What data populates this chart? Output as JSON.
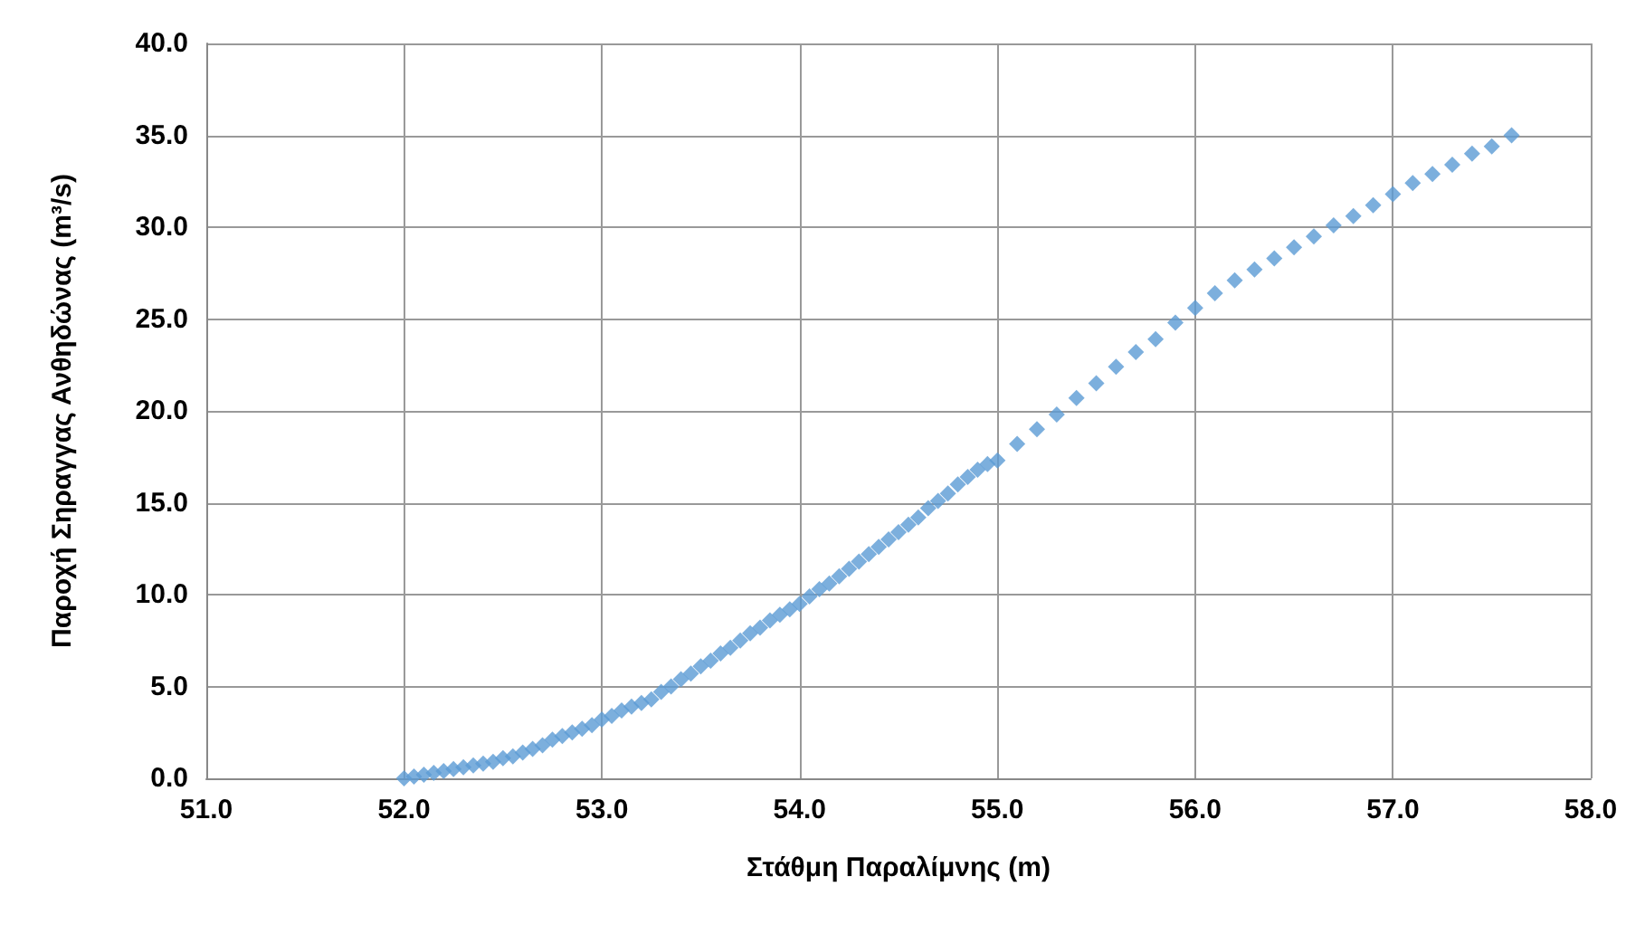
{
  "chart_data": {
    "type": "scatter",
    "xlabel": "Στάθμη Παραλίμνης (m)",
    "ylabel": "Παροχή Σηραγγας Ανθηδώνας (m³/s)",
    "x": [
      52.0,
      52.05,
      52.1,
      52.15,
      52.2,
      52.25,
      52.3,
      52.35,
      52.4,
      52.45,
      52.5,
      52.55,
      52.6,
      52.65,
      52.7,
      52.75,
      52.8,
      52.85,
      52.9,
      52.95,
      53.0,
      53.05,
      53.1,
      53.15,
      53.2,
      53.25,
      53.3,
      53.35,
      53.4,
      53.45,
      53.5,
      53.55,
      53.6,
      53.65,
      53.7,
      53.75,
      53.8,
      53.85,
      53.9,
      53.95,
      54.0,
      54.05,
      54.1,
      54.15,
      54.2,
      54.25,
      54.3,
      54.35,
      54.4,
      54.45,
      54.5,
      54.55,
      54.6,
      54.65,
      54.7,
      54.75,
      54.8,
      54.85,
      54.9,
      54.95,
      55.0,
      55.1,
      55.2,
      55.3,
      55.4,
      55.5,
      55.6,
      55.7,
      55.8,
      55.9,
      56.0,
      56.1,
      56.2,
      56.3,
      56.4,
      56.5,
      56.6,
      56.7,
      56.8,
      56.9,
      57.0,
      57.1,
      57.2,
      57.3,
      57.4,
      57.5,
      57.6
    ],
    "series": [
      {
        "color": "#5b9bd5",
        "values": [
          0.0,
          0.1,
          0.2,
          0.3,
          0.4,
          0.5,
          0.6,
          0.7,
          0.8,
          0.9,
          1.1,
          1.2,
          1.4,
          1.6,
          1.8,
          2.1,
          2.3,
          2.5,
          2.7,
          2.9,
          3.2,
          3.4,
          3.7,
          3.9,
          4.1,
          4.3,
          4.7,
          5.0,
          5.4,
          5.7,
          6.1,
          6.4,
          6.8,
          7.1,
          7.5,
          7.9,
          8.2,
          8.6,
          8.9,
          9.2,
          9.5,
          9.9,
          10.3,
          10.6,
          11.0,
          11.4,
          11.8,
          12.2,
          12.6,
          13.0,
          13.4,
          13.8,
          14.2,
          14.7,
          15.1,
          15.5,
          16.0,
          16.4,
          16.8,
          17.1,
          17.3,
          18.2,
          19.0,
          19.8,
          20.7,
          21.5,
          22.4,
          23.2,
          23.9,
          24.8,
          25.6,
          26.4,
          27.1,
          27.7,
          28.3,
          28.9,
          29.5,
          30.1,
          30.6,
          31.2,
          31.8,
          32.4,
          32.9,
          33.4,
          34.0,
          34.4,
          35.0
        ]
      }
    ],
    "xlim": [
      51,
      58
    ],
    "xticks": [
      {
        "value": 51,
        "label": "51.0"
      },
      {
        "value": 52,
        "label": "52.0"
      },
      {
        "value": 53,
        "label": "53.0"
      },
      {
        "value": 54,
        "label": "54.0"
      },
      {
        "value": 55,
        "label": "55.0"
      },
      {
        "value": 56,
        "label": "56.0"
      },
      {
        "value": 57,
        "label": "57.0"
      },
      {
        "value": 58,
        "label": "58.0"
      }
    ],
    "ylim": [
      0,
      40
    ],
    "yticks": [
      {
        "value": 0,
        "label": "0.0"
      },
      {
        "value": 5,
        "label": "5.0"
      },
      {
        "value": 10,
        "label": "10.0"
      },
      {
        "value": 15,
        "label": "15.0"
      },
      {
        "value": 20,
        "label": "20.0"
      },
      {
        "value": 25,
        "label": "25.0"
      },
      {
        "value": 30,
        "label": "30.0"
      },
      {
        "value": 35,
        "label": "35.0"
      },
      {
        "value": 40,
        "label": "40.0"
      }
    ],
    "grid": true,
    "marker": "diamond"
  }
}
